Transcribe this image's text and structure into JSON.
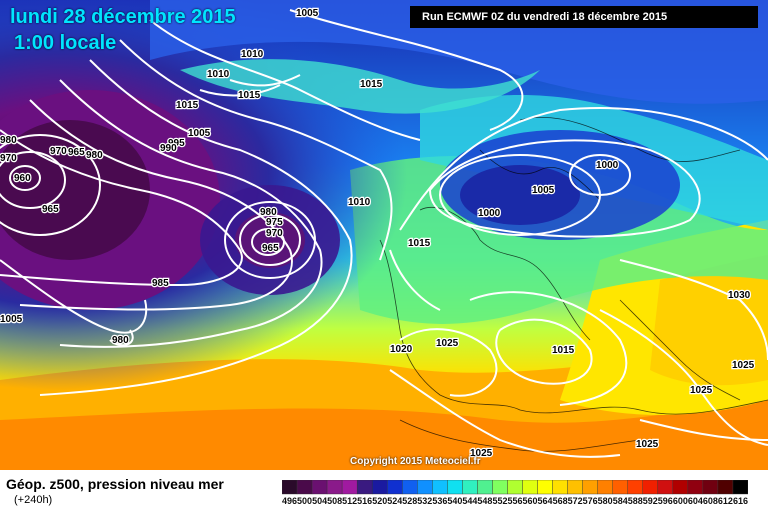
{
  "map": {
    "date_line": "lundi 28 décembre 2015",
    "time_line": "1:00 locale",
    "run_info": "Run ECMWF 0Z du vendredi 18 décembre 2015",
    "copyright": "Copyright 2015 Meteociel.fr",
    "isobar_labels": [
      {
        "id": "p1005a",
        "text": "1005"
      },
      {
        "id": "p1010a",
        "text": "1010"
      },
      {
        "id": "p1010b",
        "text": "1010"
      },
      {
        "id": "p1015a",
        "text": "1015"
      },
      {
        "id": "p1015b",
        "text": "1015"
      },
      {
        "id": "p1015c",
        "text": "1015"
      },
      {
        "id": "p1005b",
        "text": "1005"
      },
      {
        "id": "p995",
        "text": "995"
      },
      {
        "id": "p990",
        "text": "990"
      },
      {
        "id": "p980a",
        "text": "980"
      },
      {
        "id": "p970a",
        "text": "970"
      },
      {
        "id": "p965a",
        "text": "965"
      },
      {
        "id": "p960",
        "text": "960"
      },
      {
        "id": "p965b",
        "text": "965"
      },
      {
        "id": "p1010c",
        "text": "1010"
      },
      {
        "id": "p980b",
        "text": "980"
      },
      {
        "id": "p975",
        "text": "975"
      },
      {
        "id": "p970b",
        "text": "970"
      },
      {
        "id": "p965c",
        "text": "965"
      },
      {
        "id": "p985",
        "text": "985"
      },
      {
        "id": "p980c",
        "text": "980"
      },
      {
        "id": "p1005c",
        "text": "1005"
      },
      {
        "id": "p1015d",
        "text": "1015"
      },
      {
        "id": "p1000a",
        "text": "1000"
      },
      {
        "id": "p1005d",
        "text": "1005"
      },
      {
        "id": "p1000b",
        "text": "1000"
      },
      {
        "id": "p1020",
        "text": "1020"
      },
      {
        "id": "p1025a",
        "text": "1025"
      },
      {
        "id": "p1015e",
        "text": "1015"
      },
      {
        "id": "p1030",
        "text": "1030"
      },
      {
        "id": "p1025b",
        "text": "1025"
      },
      {
        "id": "p1025c",
        "text": "1025"
      },
      {
        "id": "p1025d",
        "text": "1025"
      },
      {
        "id": "p1025e",
        "text": "1025"
      },
      {
        "id": "p980d",
        "text": "980"
      },
      {
        "id": "p970c",
        "text": "970"
      }
    ]
  },
  "legend": {
    "title": "Géop. z500, pression niveau mer",
    "subtitle": "(+240h)",
    "scale_values": [
      "496",
      "500",
      "504",
      "508",
      "512",
      "516",
      "520",
      "524",
      "528",
      "532",
      "536",
      "540",
      "544",
      "548",
      "552",
      "556",
      "560",
      "564",
      "568",
      "572",
      "576",
      "580",
      "584",
      "588",
      "592",
      "596",
      "600",
      "604",
      "608",
      "612",
      "616"
    ],
    "scale_colors": [
      "#2a0a2a",
      "#4a0a4a",
      "#6a1070",
      "#8a1a8a",
      "#a01aa0",
      "#3a1a80",
      "#1a1aa0",
      "#1030d0",
      "#1060f0",
      "#1090ff",
      "#10c0ff",
      "#10e0f0",
      "#30f0c0",
      "#50f090",
      "#80ff60",
      "#b0ff30",
      "#e0ff10",
      "#ffff00",
      "#ffe000",
      "#ffc000",
      "#ffa000",
      "#ff8000",
      "#ff6000",
      "#ff4000",
      "#f02000",
      "#d01010",
      "#b00000",
      "#900010",
      "#700010",
      "#500000",
      "#000000"
    ]
  }
}
